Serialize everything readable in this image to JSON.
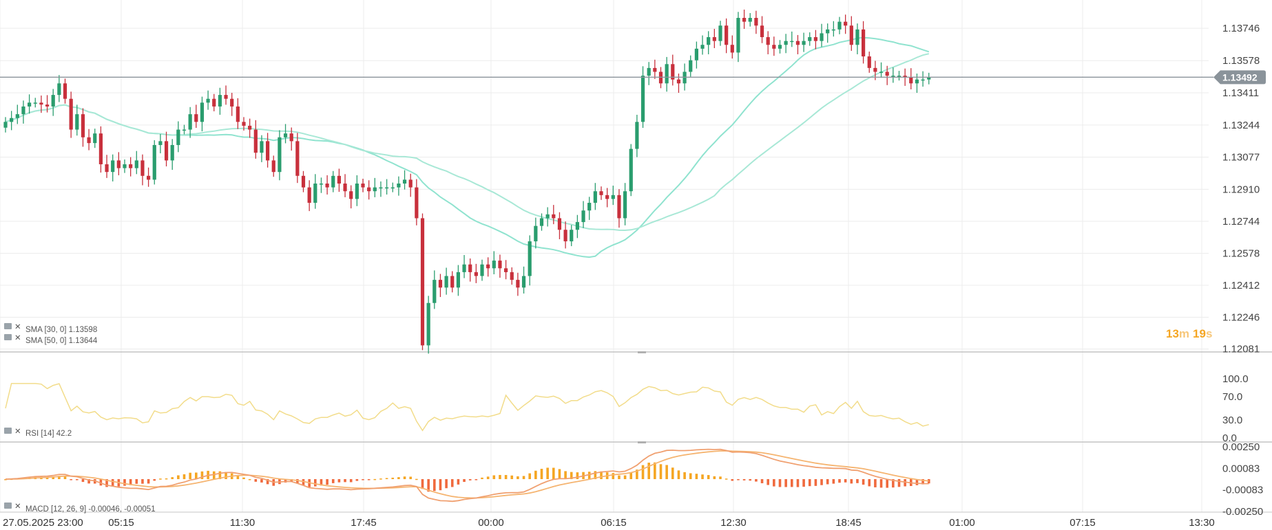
{
  "chart_data": {
    "type": "candlestick",
    "instrument_note": "",
    "colors": {
      "up": "#2a9d6e",
      "down": "#c8303c",
      "sma30": "#8fe3cf",
      "sma50": "#a8e8d6",
      "rsi": "#f2dc8a",
      "macd_line": "#f0a070",
      "signal_line": "#f5b470",
      "hist_pos": "#f5a623",
      "hist_neg": "#f06a3e",
      "timer": "#f5a623",
      "price_tag": "#8a939a"
    },
    "price_axis": {
      "range": [
        1.1208,
        1.1385
      ],
      "ticks": [
        "1.13746",
        "1.13578",
        "1.13411",
        "1.13244",
        "1.13077",
        "1.12910",
        "1.12744",
        "1.12578",
        "1.12412",
        "1.12246",
        "1.12081"
      ]
    },
    "current_price": 1.13492,
    "current_price_label": "1.13492",
    "timer": {
      "minutes": "13",
      "m": "m",
      "seconds": "19",
      "s": "s"
    },
    "x_axis": {
      "labels": [
        "27.05.2025  23:00",
        "05:15",
        "11:30",
        "17:45",
        "00:00",
        "06:15",
        "12:30",
        "18:45",
        "01:00",
        "07:15",
        "13:30"
      ]
    },
    "close": [
      1.1326,
      1.1328,
      1.133,
      1.1334,
      1.1336,
      1.1336,
      1.1335,
      1.1334,
      1.134,
      1.1346,
      1.1338,
      1.1322,
      1.133,
      1.1318,
      1.1315,
      1.132,
      1.1304,
      1.13,
      1.1306,
      1.1302,
      1.1304,
      1.1302,
      1.1306,
      1.1298,
      1.1296,
      1.1314,
      1.1316,
      1.1306,
      1.1314,
      1.1322,
      1.1322,
      1.133,
      1.1326,
      1.1336,
      1.1338,
      1.1334,
      1.134,
      1.1338,
      1.1334,
      1.1326,
      1.1324,
      1.1322,
      1.131,
      1.1316,
      1.1306,
      1.13,
      1.1318,
      1.132,
      1.1316,
      1.1298,
      1.1292,
      1.1284,
      1.1294,
      1.1294,
      1.1292,
      1.1298,
      1.1294,
      1.129,
      1.1286,
      1.1294,
      1.1292,
      1.129,
      1.1292,
      1.1292,
      1.1292,
      1.1292,
      1.1294,
      1.1296,
      1.1292,
      1.1276,
      1.121,
      1.1232,
      1.1244,
      1.124,
      1.1246,
      1.124,
      1.1248,
      1.1252,
      1.1248,
      1.1246,
      1.1252,
      1.125,
      1.1254,
      1.125,
      1.1248,
      1.1244,
      1.124,
      1.1246,
      1.1264,
      1.1272,
      1.1276,
      1.1278,
      1.1276,
      1.127,
      1.1264,
      1.127,
      1.1274,
      1.128,
      1.1284,
      1.129,
      1.1288,
      1.1286,
      1.1288,
      1.1276,
      1.129,
      1.1312,
      1.1326,
      1.135,
      1.1354,
      1.1352,
      1.1346,
      1.1356,
      1.1348,
      1.1346,
      1.1352,
      1.1358,
      1.1364,
      1.1366,
      1.137,
      1.1368,
      1.1376,
      1.1366,
      1.1362,
      1.138,
      1.1378,
      1.138,
      1.1376,
      1.137,
      1.1366,
      1.1364,
      1.1366,
      1.1368,
      1.1368,
      1.1366,
      1.1368,
      1.137,
      1.1368,
      1.1372,
      1.1374,
      1.1374,
      1.1378,
      1.1376,
      1.1366,
      1.1374,
      1.136,
      1.1354,
      1.1352,
      1.1352,
      1.135,
      1.135,
      1.135,
      1.1349,
      1.1346,
      1.1348,
      1.1348,
      1.1349
    ],
    "sma_legend": [
      {
        "label": "SMA [30, 0] 1.13598"
      },
      {
        "label": "SMA [50, 0] 1.13644"
      }
    ],
    "sma30_end": 1.13598,
    "sma50_end": 1.13644,
    "rsi": {
      "legend": "RSI [14] 42.2",
      "range": [
        0,
        100
      ],
      "ticks": [
        "100.0",
        "70.0",
        "30.0",
        "0.0"
      ],
      "last": 42.2
    },
    "macd": {
      "legend": "MACD [12, 26, 9] -0.00046, -0.00051",
      "range": [
        -0.0025,
        0.0025
      ],
      "ticks": [
        "0.00250",
        "0.00083",
        "-0.00083",
        "-0.00250"
      ],
      "macd_last": -0.00046,
      "signal_last": -0.00051
    }
  }
}
